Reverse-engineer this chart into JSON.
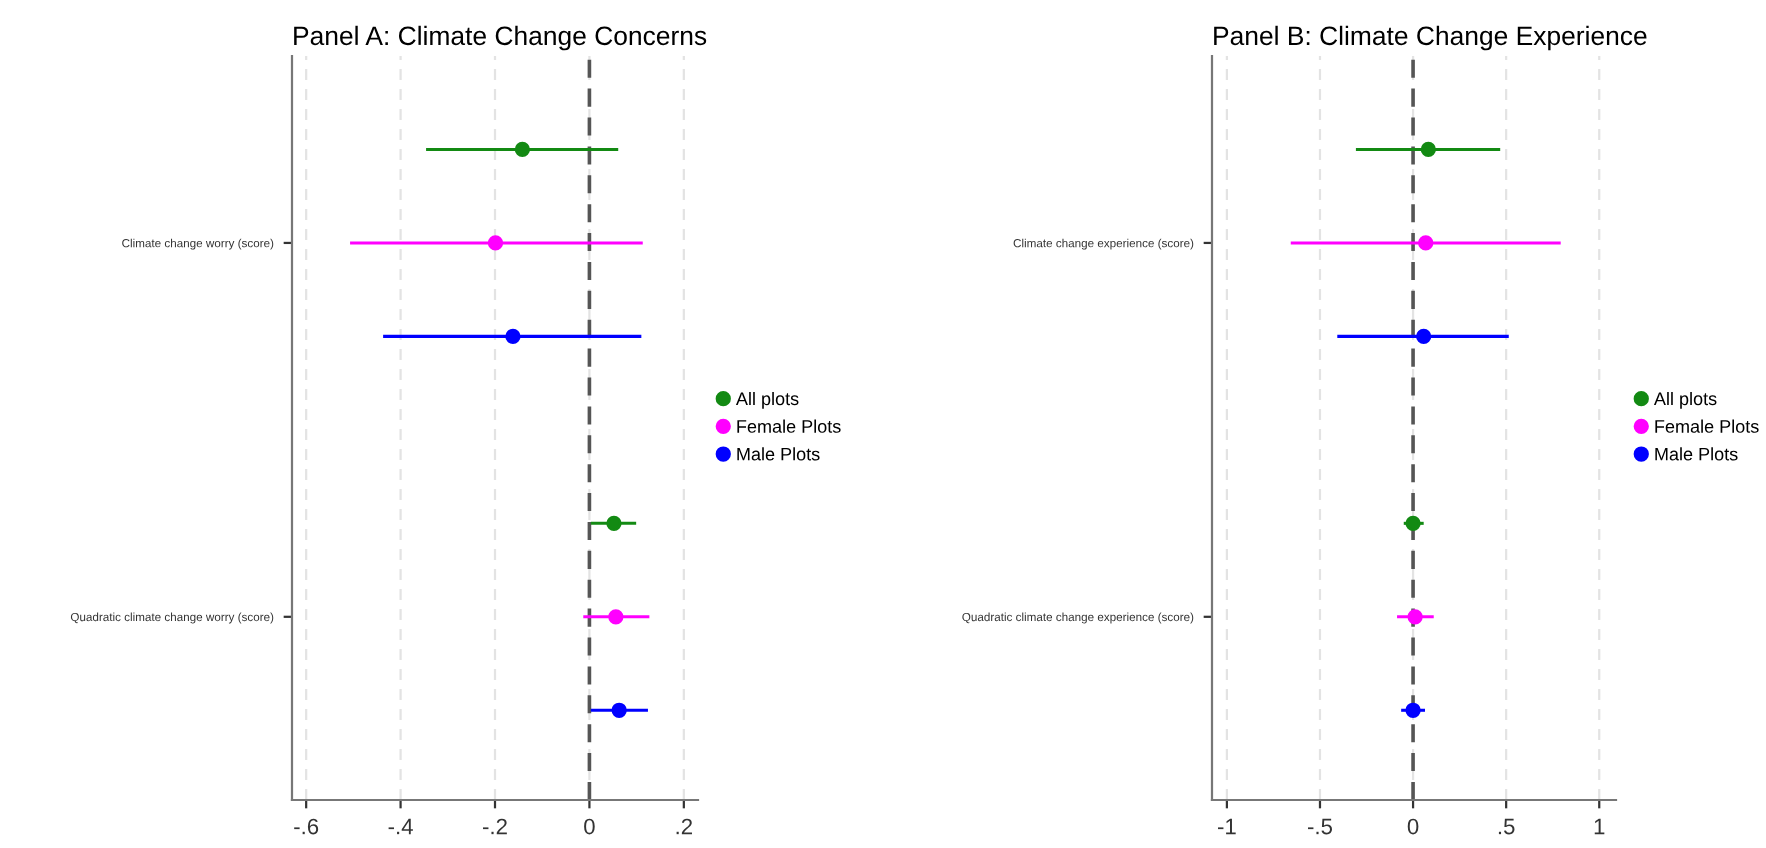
{
  "chart_data": [
    {
      "type": "scatter",
      "orientation": "horizontal",
      "title": "Panel A: Climate Change Concerns",
      "categories": [
        "Climate change worry (score)",
        "Quadratic climate change worry (score)"
      ],
      "series": [
        {
          "name": "All plots",
          "color": "#138a13",
          "values": [
            -0.142,
            0.052
          ],
          "errors": [
            [
              -0.346,
              0.061
            ],
            [
              0.003,
              0.099
            ]
          ]
        },
        {
          "name": "Female Plots",
          "color": "#ff00ff",
          "values": [
            -0.199,
            0.056
          ],
          "errors": [
            [
              -0.507,
              0.113
            ],
            [
              -0.013,
              0.127
            ]
          ]
        },
        {
          "name": "Male Plots",
          "color": "#0000ff",
          "values": [
            -0.162,
            0.063
          ],
          "errors": [
            [
              -0.437,
              0.11
            ],
            [
              0.003,
              0.124
            ]
          ]
        }
      ],
      "xlim": [
        -0.63,
        0.23
      ],
      "xticks": [
        {
          "value": -0.6,
          "label": "-.6"
        },
        {
          "value": -0.4,
          "label": "-.4"
        },
        {
          "value": -0.2,
          "label": "-.2"
        },
        0,
        {
          "value": 0.2,
          "label": ".2"
        }
      ],
      "ref_lines": [
        {
          "axis": "x",
          "value": 0,
          "color": "#555555",
          "line_style": "dashed"
        }
      ],
      "grid": "x",
      "legend": "right",
      "marker": "circle"
    },
    {
      "type": "scatter",
      "orientation": "horizontal",
      "title": "Panel B: Climate Change Experience",
      "categories": [
        "Climate change experience (score)",
        "Quadratic climate change experience (score)"
      ],
      "series": [
        {
          "name": "All plots",
          "color": "#138a13",
          "values": [
            0.082,
            0.0
          ],
          "errors": [
            [
              -0.307,
              0.468
            ],
            [
              -0.05,
              0.057
            ]
          ]
        },
        {
          "name": "Female Plots",
          "color": "#ff00ff",
          "values": [
            0.068,
            0.011
          ],
          "errors": [
            [
              -0.657,
              0.793
            ],
            [
              -0.086,
              0.111
            ]
          ]
        },
        {
          "name": "Male Plots",
          "color": "#0000ff",
          "values": [
            0.057,
            0.0
          ],
          "errors": [
            [
              -0.407,
              0.514
            ],
            [
              -0.064,
              0.064
            ]
          ]
        }
      ],
      "xlim": [
        -1.08,
        1.09
      ],
      "xticks": [
        -1,
        {
          "value": -0.5,
          "label": "-.5"
        },
        0,
        {
          "value": 0.5,
          "label": ".5"
        },
        1
      ],
      "ref_lines": [
        {
          "axis": "x",
          "value": 0,
          "color": "#555555",
          "line_style": "dashed"
        }
      ],
      "grid": "x",
      "legend": "right",
      "marker": "circle"
    }
  ]
}
